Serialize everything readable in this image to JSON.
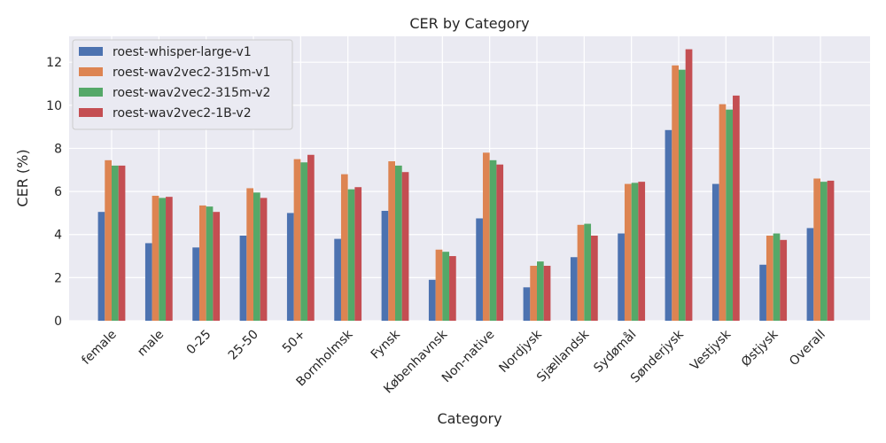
{
  "chart_data": {
    "type": "bar",
    "title": "CER by Category",
    "xlabel": "Category",
    "ylabel": "CER (%)",
    "ylim": [
      0,
      13.2
    ],
    "yticks": [
      0,
      2,
      4,
      6,
      8,
      10,
      12
    ],
    "grid": true,
    "legend_position": "top-left",
    "categories": [
      "female",
      "male",
      "0-25",
      "25-50",
      "50+",
      "Bornholmsk",
      "Fynsk",
      "Københavnsk",
      "Non-native",
      "Nordjysk",
      "Sjællandsk",
      "Sydømål",
      "Sønderjysk",
      "Vestjysk",
      "Østjysk",
      "Overall"
    ],
    "series": [
      {
        "name": "roest-whisper-large-v1",
        "color": "#4c72b0",
        "values": [
          5.05,
          3.6,
          3.4,
          3.95,
          5.0,
          3.8,
          5.1,
          1.9,
          4.75,
          1.55,
          2.95,
          4.05,
          8.85,
          6.35,
          2.6,
          4.3
        ]
      },
      {
        "name": "roest-wav2vec2-315m-v1",
        "color": "#dd8452",
        "values": [
          7.45,
          5.8,
          5.35,
          6.15,
          7.5,
          6.8,
          7.4,
          3.3,
          7.8,
          2.55,
          4.45,
          6.35,
          11.85,
          10.05,
          3.95,
          6.6
        ]
      },
      {
        "name": "roest-wav2vec2-315m-v2",
        "color": "#55a868",
        "values": [
          7.2,
          5.7,
          5.3,
          5.95,
          7.35,
          6.1,
          7.2,
          3.2,
          7.45,
          2.75,
          4.5,
          6.4,
          11.65,
          9.8,
          4.05,
          6.45
        ]
      },
      {
        "name": "roest-wav2vec2-1B-v2",
        "color": "#c44e52",
        "values": [
          7.2,
          5.75,
          5.05,
          5.7,
          7.7,
          6.2,
          6.9,
          3.0,
          7.25,
          2.55,
          3.95,
          6.45,
          12.6,
          10.45,
          3.75,
          6.5
        ]
      }
    ]
  }
}
